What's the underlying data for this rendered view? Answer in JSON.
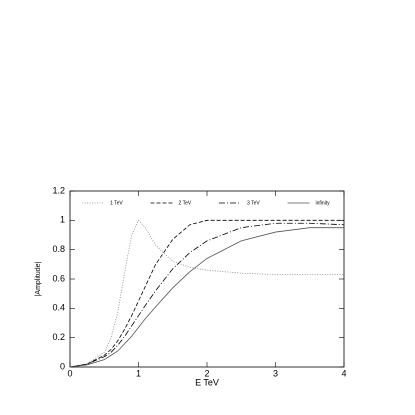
{
  "chart_data": {
    "type": "line",
    "x_label": "E TeV",
    "y_label": "|Amplitude|",
    "x": [
      0,
      0.25,
      0.5,
      0.6,
      0.7,
      0.8,
      0.9,
      1,
      1.1,
      1.25,
      1.5,
      1.75,
      2,
      2.5,
      3,
      3.5,
      4
    ],
    "series": [
      {
        "name": "1 TeV",
        "color": "#888888",
        "dash": "1,1.5",
        "values": [
          0,
          0.02,
          0.1,
          0.2,
          0.38,
          0.65,
          0.9,
          1.0,
          0.95,
          0.83,
          0.72,
          0.68,
          0.66,
          0.64,
          0.63,
          0.63,
          0.63
        ]
      },
      {
        "name": "2 TeV",
        "color": "#000000",
        "dash": "4,2",
        "values": [
          0,
          0.02,
          0.08,
          0.12,
          0.18,
          0.26,
          0.35,
          0.45,
          0.55,
          0.7,
          0.87,
          0.97,
          1.0,
          1.0,
          1.0,
          1.0,
          1.0
        ]
      },
      {
        "name": "3 TeV",
        "color": "#000000",
        "dash": "6,2,1,2",
        "values": [
          0,
          0.02,
          0.07,
          0.1,
          0.15,
          0.21,
          0.28,
          0.35,
          0.42,
          0.52,
          0.67,
          0.78,
          0.86,
          0.95,
          0.98,
          0.98,
          0.97
        ]
      },
      {
        "name": "infinity",
        "color": "#555555",
        "dash": "none",
        "values": [
          0,
          0.015,
          0.05,
          0.08,
          0.11,
          0.16,
          0.21,
          0.27,
          0.33,
          0.41,
          0.54,
          0.65,
          0.74,
          0.86,
          0.92,
          0.95,
          0.95
        ]
      }
    ],
    "xlim": [
      0,
      4
    ],
    "ylim": [
      0,
      1.2
    ],
    "xticks": [
      0,
      1,
      2,
      3,
      4
    ],
    "yticks": [
      0,
      0.2,
      0.4,
      0.6,
      0.8,
      1,
      1.2
    ],
    "legend": "top"
  }
}
